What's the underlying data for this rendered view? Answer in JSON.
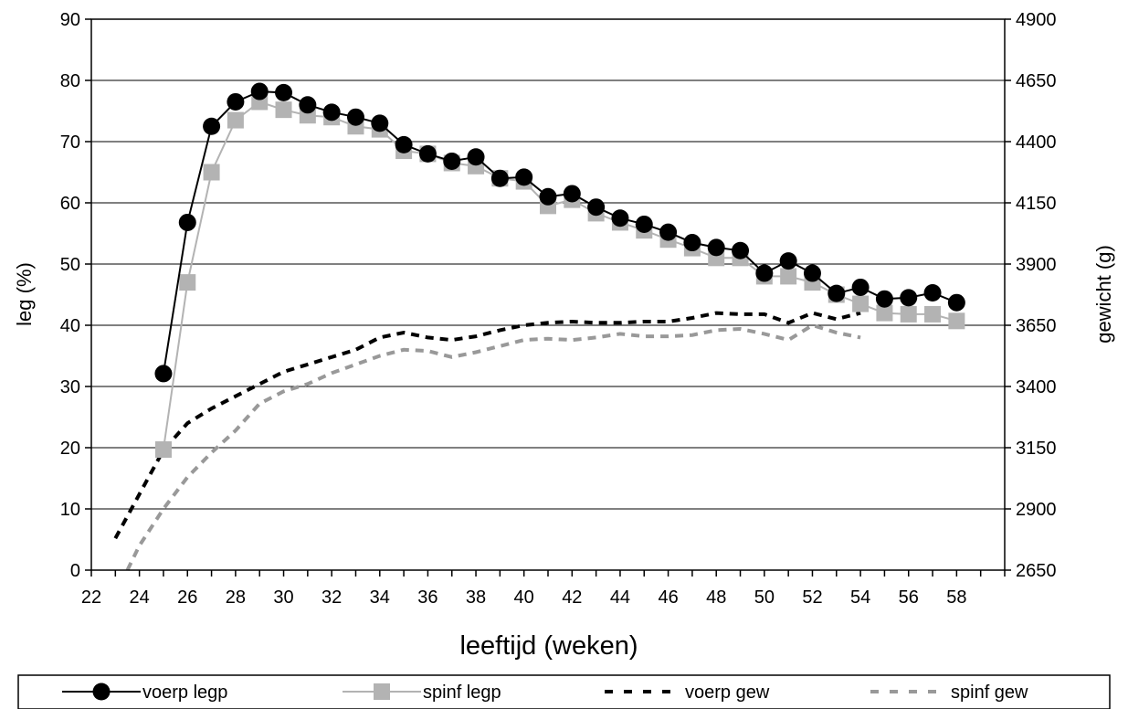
{
  "chart_data": {
    "type": "line",
    "xlabel": "leeftijd (weken)",
    "ylabel_left": "leg (%)",
    "ylabel_right": "gewicht (g)",
    "xlim": [
      22,
      60
    ],
    "ylim_left": [
      0,
      90
    ],
    "ylim_right": [
      2650,
      4900
    ],
    "x_ticks": [
      "22",
      "24",
      "26",
      "28",
      "30",
      "32",
      "34",
      "36",
      "38",
      "40",
      "42",
      "44",
      "46",
      "48",
      "50",
      "52",
      "54",
      "56",
      "58"
    ],
    "y_ticks_left": [
      "0",
      "10",
      "20",
      "30",
      "40",
      "50",
      "60",
      "70",
      "80",
      "90"
    ],
    "y_ticks_right": [
      "2650",
      "2900",
      "3150",
      "3400",
      "3650",
      "3900",
      "4150",
      "4400",
      "4650",
      "4900"
    ],
    "grid": "horizontal",
    "legend_position": "bottom",
    "series": [
      {
        "name": "voerp legp",
        "axis": "left",
        "color": "#000000",
        "marker": "circle",
        "style": "solid",
        "x": [
          25,
          26,
          27,
          28,
          29,
          30,
          31,
          32,
          33,
          34,
          35,
          36,
          37,
          38,
          39,
          40,
          41,
          42,
          43,
          44,
          45,
          46,
          47,
          48,
          49,
          50,
          51,
          52,
          53,
          54,
          55,
          56,
          57,
          58
        ],
        "y": [
          32.1,
          56.8,
          72.5,
          76.5,
          78.2,
          78.0,
          76.0,
          74.8,
          74.0,
          73.0,
          69.5,
          68.0,
          66.8,
          67.5,
          64.0,
          64.2,
          61.0,
          61.5,
          59.3,
          57.5,
          56.5,
          55.2,
          53.5,
          52.7,
          52.2,
          48.5,
          50.5,
          48.5,
          45.2,
          46.2,
          44.3,
          44.5,
          45.3,
          43.7
        ]
      },
      {
        "name": "spinf legp",
        "axis": "left",
        "color": "#b3b3b3",
        "marker": "square",
        "style": "solid",
        "x": [
          25,
          26,
          27,
          28,
          29,
          30,
          31,
          32,
          33,
          34,
          35,
          36,
          37,
          38,
          39,
          40,
          41,
          42,
          43,
          44,
          45,
          46,
          47,
          48,
          49,
          50,
          51,
          52,
          53,
          54,
          55,
          56,
          57,
          58
        ],
        "y": [
          19.7,
          47.0,
          65.0,
          73.5,
          76.5,
          75.2,
          74.3,
          74.0,
          72.5,
          72.0,
          68.5,
          68.0,
          66.5,
          66.0,
          64.0,
          63.5,
          59.5,
          60.5,
          58.3,
          56.8,
          55.5,
          54.0,
          52.6,
          51.0,
          51.0,
          48.0,
          48.0,
          47.0,
          45.0,
          43.5,
          42.0,
          41.8,
          41.8,
          40.7
        ]
      },
      {
        "name": "voerp gew",
        "axis": "right",
        "color": "#000000",
        "marker": "none",
        "style": "dashed",
        "x": [
          23,
          24,
          25,
          26,
          27,
          28,
          29,
          30,
          31,
          32,
          33,
          34,
          35,
          36,
          37,
          38,
          39,
          40,
          41,
          42,
          43,
          44,
          45,
          46,
          47,
          48,
          49,
          50,
          51,
          52,
          53,
          54
        ],
        "y": [
          2780,
          2960,
          3140,
          3250,
          3310,
          3360,
          3410,
          3460,
          3490,
          3520,
          3550,
          3600,
          3620,
          3600,
          3590,
          3605,
          3630,
          3650,
          3660,
          3665,
          3660,
          3660,
          3665,
          3665,
          3680,
          3700,
          3695,
          3695,
          3660,
          3700,
          3675,
          3700
        ]
      },
      {
        "name": "spinf gew",
        "axis": "right",
        "color": "#999999",
        "marker": "none",
        "style": "dashed",
        "x": [
          23.5,
          24,
          25,
          26,
          27,
          28,
          29,
          30,
          31,
          32,
          33,
          34,
          35,
          36,
          37,
          38,
          39,
          40,
          41,
          42,
          43,
          44,
          45,
          46,
          47,
          48,
          49,
          50,
          51,
          52,
          53,
          54
        ],
        "y": [
          2650,
          2750,
          2900,
          3030,
          3130,
          3220,
          3330,
          3380,
          3410,
          3455,
          3490,
          3525,
          3550,
          3545,
          3520,
          3540,
          3565,
          3590,
          3595,
          3590,
          3600,
          3615,
          3605,
          3605,
          3610,
          3630,
          3635,
          3615,
          3590,
          3650,
          3620,
          3600
        ]
      }
    ]
  }
}
